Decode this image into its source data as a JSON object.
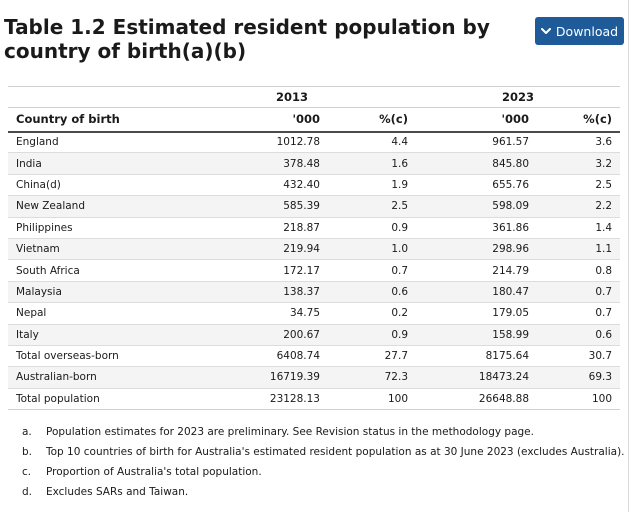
{
  "title": "Table 1.2 Estimated resident population by country of birth(a)(b)",
  "download_label": "Download",
  "table": {
    "year_headers": [
      "2013",
      "2023"
    ],
    "columns": [
      "Country of birth",
      "'000",
      "%(c)",
      "'000",
      "%(c)"
    ],
    "rows": [
      [
        "England",
        "1012.78",
        "4.4",
        "961.57",
        "3.6"
      ],
      [
        "India",
        "378.48",
        "1.6",
        "845.80",
        "3.2"
      ],
      [
        "China(d)",
        "432.40",
        "1.9",
        "655.76",
        "2.5"
      ],
      [
        "New Zealand",
        "585.39",
        "2.5",
        "598.09",
        "2.2"
      ],
      [
        "Philippines",
        "218.87",
        "0.9",
        "361.86",
        "1.4"
      ],
      [
        "Vietnam",
        "219.94",
        "1.0",
        "298.96",
        "1.1"
      ],
      [
        "South Africa",
        "172.17",
        "0.7",
        "214.79",
        "0.8"
      ],
      [
        "Malaysia",
        "138.37",
        "0.6",
        "180.47",
        "0.7"
      ],
      [
        "Nepal",
        "34.75",
        "0.2",
        "179.05",
        "0.7"
      ],
      [
        "Italy",
        "200.67",
        "0.9",
        "158.99",
        "0.6"
      ],
      [
        "Total overseas-born",
        "6408.74",
        "27.7",
        "8175.64",
        "30.7"
      ],
      [
        "Australian-born",
        "16719.39",
        "72.3",
        "18473.24",
        "69.3"
      ],
      [
        "Total population",
        "23128.13",
        "100",
        "26648.88",
        "100"
      ]
    ]
  },
  "notes": [
    {
      "marker": "a.",
      "text": "Population estimates for 2023 are preliminary. See Revision status in the methodology page."
    },
    {
      "marker": "b.",
      "text": "Top 10 countries of birth for Australia's estimated resident population as at 30 June 2023 (excludes Australia)."
    },
    {
      "marker": "c.",
      "text": "Proportion of Australia's total population."
    },
    {
      "marker": "d.",
      "text": "Excludes SARs and Taiwan."
    }
  ]
}
